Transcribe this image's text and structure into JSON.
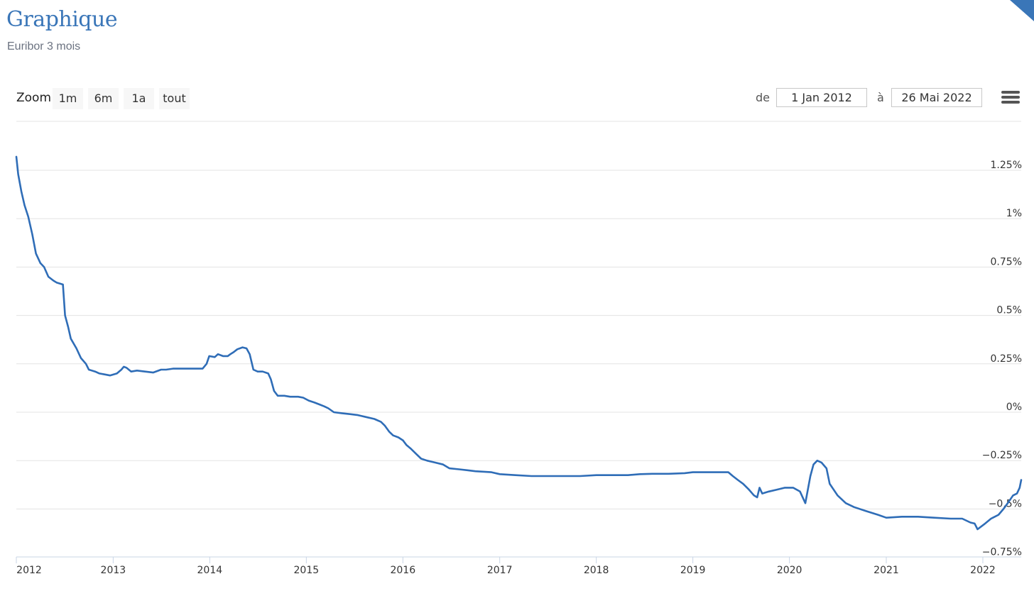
{
  "header": {
    "title": "Graphique",
    "subtitle": "Euribor 3 mois"
  },
  "toolbar": {
    "zoom_label": "Zoom",
    "zoom_buttons": [
      "1m",
      "6m",
      "1a",
      "tout"
    ],
    "from_label": "de",
    "from_value": "1 Jan 2012",
    "to_label": "à",
    "to_value": "26 Mai 2022",
    "menu_icon": "hamburger-menu-icon"
  },
  "colors": {
    "accent": "#3a76b8",
    "line": "#2f6db7",
    "grid": "#e3e3e3"
  },
  "chart_data": {
    "type": "line",
    "title": "",
    "xlabel": "",
    "ylabel": "",
    "xlim": [
      "2012-01-01",
      "2022-05-26"
    ],
    "ylim": [
      -0.75,
      1.5
    ],
    "grid": true,
    "y_ticks": [
      1.25,
      1,
      0.75,
      0.5,
      0.25,
      0,
      -0.25,
      -0.5,
      -0.75
    ],
    "y_tick_labels": [
      "1.25%",
      "1%",
      "0.75%",
      "0.5%",
      "0.25%",
      "0%",
      "−0.25%",
      "−0.5%",
      "−0.75%"
    ],
    "x_tick_labels": [
      "2012",
      "2013",
      "2014",
      "2015",
      "2016",
      "2017",
      "2018",
      "2019",
      "2020",
      "2021",
      "2022"
    ],
    "series": [
      {
        "values": [
          [
            "2012-01-01",
            1.32
          ],
          [
            "2012-01-08",
            1.23
          ],
          [
            "2012-01-20",
            1.14
          ],
          [
            "2012-02-01",
            1.07
          ],
          [
            "2012-02-15",
            1.01
          ],
          [
            "2012-03-01",
            0.92
          ],
          [
            "2012-03-15",
            0.82
          ],
          [
            "2012-04-01",
            0.77
          ],
          [
            "2012-04-15",
            0.75
          ],
          [
            "2012-05-01",
            0.7
          ],
          [
            "2012-05-20",
            0.68
          ],
          [
            "2012-06-01",
            0.67
          ],
          [
            "2012-06-25",
            0.66
          ],
          [
            "2012-07-03",
            0.5
          ],
          [
            "2012-07-15",
            0.44
          ],
          [
            "2012-07-25",
            0.38
          ],
          [
            "2012-08-15",
            0.33
          ],
          [
            "2012-09-01",
            0.28
          ],
          [
            "2012-09-20",
            0.25
          ],
          [
            "2012-10-01",
            0.22
          ],
          [
            "2012-10-25",
            0.21
          ],
          [
            "2012-11-10",
            0.2
          ],
          [
            "2012-12-01",
            0.195
          ],
          [
            "2012-12-20",
            0.19
          ],
          [
            "2013-01-15",
            0.2
          ],
          [
            "2013-02-01",
            0.22
          ],
          [
            "2013-02-10",
            0.235
          ],
          [
            "2013-02-20",
            0.23
          ],
          [
            "2013-03-10",
            0.21
          ],
          [
            "2013-04-01",
            0.215
          ],
          [
            "2013-05-01",
            0.21
          ],
          [
            "2013-06-01",
            0.205
          ],
          [
            "2013-07-01",
            0.22
          ],
          [
            "2013-07-20",
            0.22
          ],
          [
            "2013-08-15",
            0.225
          ],
          [
            "2013-09-15",
            0.225
          ],
          [
            "2013-10-15",
            0.225
          ],
          [
            "2013-11-15",
            0.225
          ],
          [
            "2013-12-05",
            0.225
          ],
          [
            "2013-12-20",
            0.25
          ],
          [
            "2013-12-30",
            0.29
          ],
          [
            "2014-01-20",
            0.285
          ],
          [
            "2014-02-01",
            0.3
          ],
          [
            "2014-02-20",
            0.29
          ],
          [
            "2014-03-10",
            0.29
          ],
          [
            "2014-03-20",
            0.3
          ],
          [
            "2014-04-01",
            0.31
          ],
          [
            "2014-04-15",
            0.325
          ],
          [
            "2014-05-05",
            0.335
          ],
          [
            "2014-05-20",
            0.33
          ],
          [
            "2014-06-01",
            0.3
          ],
          [
            "2014-06-15",
            0.22
          ],
          [
            "2014-07-01",
            0.21
          ],
          [
            "2014-07-20",
            0.21
          ],
          [
            "2014-08-10",
            0.2
          ],
          [
            "2014-08-20",
            0.17
          ],
          [
            "2014-09-01",
            0.11
          ],
          [
            "2014-09-15",
            0.085
          ],
          [
            "2014-10-10",
            0.085
          ],
          [
            "2014-11-01",
            0.08
          ],
          [
            "2014-12-01",
            0.08
          ],
          [
            "2014-12-20",
            0.075
          ],
          [
            "2015-01-10",
            0.06
          ],
          [
            "2015-02-01",
            0.05
          ],
          [
            "2015-02-20",
            0.04
          ],
          [
            "2015-03-10",
            0.03
          ],
          [
            "2015-03-25",
            0.02
          ],
          [
            "2015-04-15",
            0.0
          ],
          [
            "2015-05-15",
            -0.005
          ],
          [
            "2015-06-15",
            -0.01
          ],
          [
            "2015-07-15",
            -0.015
          ],
          [
            "2015-08-15",
            -0.025
          ],
          [
            "2015-09-15",
            -0.035
          ],
          [
            "2015-10-10",
            -0.05
          ],
          [
            "2015-10-25",
            -0.07
          ],
          [
            "2015-11-10",
            -0.1
          ],
          [
            "2015-11-25",
            -0.12
          ],
          [
            "2015-12-15",
            -0.13
          ],
          [
            "2016-01-01",
            -0.145
          ],
          [
            "2016-01-15",
            -0.17
          ],
          [
            "2016-02-01",
            -0.19
          ],
          [
            "2016-02-20",
            -0.215
          ],
          [
            "2016-03-10",
            -0.24
          ],
          [
            "2016-04-01",
            -0.25
          ],
          [
            "2016-05-01",
            -0.26
          ],
          [
            "2016-06-01",
            -0.27
          ],
          [
            "2016-06-25",
            -0.29
          ],
          [
            "2016-08-01",
            -0.295
          ],
          [
            "2016-09-01",
            -0.3
          ],
          [
            "2016-10-01",
            -0.305
          ],
          [
            "2016-12-01",
            -0.31
          ],
          [
            "2017-01-01",
            -0.32
          ],
          [
            "2017-03-01",
            -0.325
          ],
          [
            "2017-05-01",
            -0.33
          ],
          [
            "2017-07-01",
            -0.33
          ],
          [
            "2017-09-01",
            -0.33
          ],
          [
            "2017-11-01",
            -0.33
          ],
          [
            "2018-01-01",
            -0.325
          ],
          [
            "2018-03-01",
            -0.325
          ],
          [
            "2018-05-01",
            -0.325
          ],
          [
            "2018-06-15",
            -0.32
          ],
          [
            "2018-08-01",
            -0.318
          ],
          [
            "2018-10-01",
            -0.318
          ],
          [
            "2018-12-01",
            -0.315
          ],
          [
            "2019-01-01",
            -0.31
          ],
          [
            "2019-03-01",
            -0.31
          ],
          [
            "2019-04-15",
            -0.31
          ],
          [
            "2019-05-15",
            -0.31
          ],
          [
            "2019-06-01",
            -0.33
          ],
          [
            "2019-06-20",
            -0.35
          ],
          [
            "2019-07-10",
            -0.37
          ],
          [
            "2019-08-01",
            -0.4
          ],
          [
            "2019-08-20",
            -0.43
          ],
          [
            "2019-09-01",
            -0.44
          ],
          [
            "2019-09-10",
            -0.39
          ],
          [
            "2019-09-20",
            -0.42
          ],
          [
            "2019-10-15",
            -0.41
          ],
          [
            "2019-11-15",
            -0.4
          ],
          [
            "2019-12-15",
            -0.39
          ],
          [
            "2020-01-15",
            -0.39
          ],
          [
            "2020-02-10",
            -0.41
          ],
          [
            "2020-03-01",
            -0.47
          ],
          [
            "2020-03-20",
            -0.33
          ],
          [
            "2020-04-01",
            -0.27
          ],
          [
            "2020-04-15",
            -0.25
          ],
          [
            "2020-05-01",
            -0.26
          ],
          [
            "2020-05-20",
            -0.29
          ],
          [
            "2020-06-01",
            -0.37
          ],
          [
            "2020-07-01",
            -0.43
          ],
          [
            "2020-08-01",
            -0.47
          ],
          [
            "2020-09-01",
            -0.49
          ],
          [
            "2020-10-15",
            -0.51
          ],
          [
            "2020-12-01",
            -0.53
          ],
          [
            "2021-01-01",
            -0.545
          ],
          [
            "2021-03-01",
            -0.54
          ],
          [
            "2021-05-01",
            -0.54
          ],
          [
            "2021-07-01",
            -0.545
          ],
          [
            "2021-09-01",
            -0.55
          ],
          [
            "2021-10-15",
            -0.55
          ],
          [
            "2021-11-15",
            -0.57
          ],
          [
            "2021-12-01",
            -0.575
          ],
          [
            "2021-12-12",
            -0.605
          ],
          [
            "2022-01-05",
            -0.58
          ],
          [
            "2022-02-01",
            -0.55
          ],
          [
            "2022-03-01",
            -0.53
          ],
          [
            "2022-03-20",
            -0.5
          ],
          [
            "2022-04-05",
            -0.47
          ],
          [
            "2022-04-25",
            -0.43
          ],
          [
            "2022-05-10",
            -0.42
          ],
          [
            "2022-05-20",
            -0.39
          ],
          [
            "2022-05-26",
            -0.35
          ]
        ]
      }
    ]
  }
}
